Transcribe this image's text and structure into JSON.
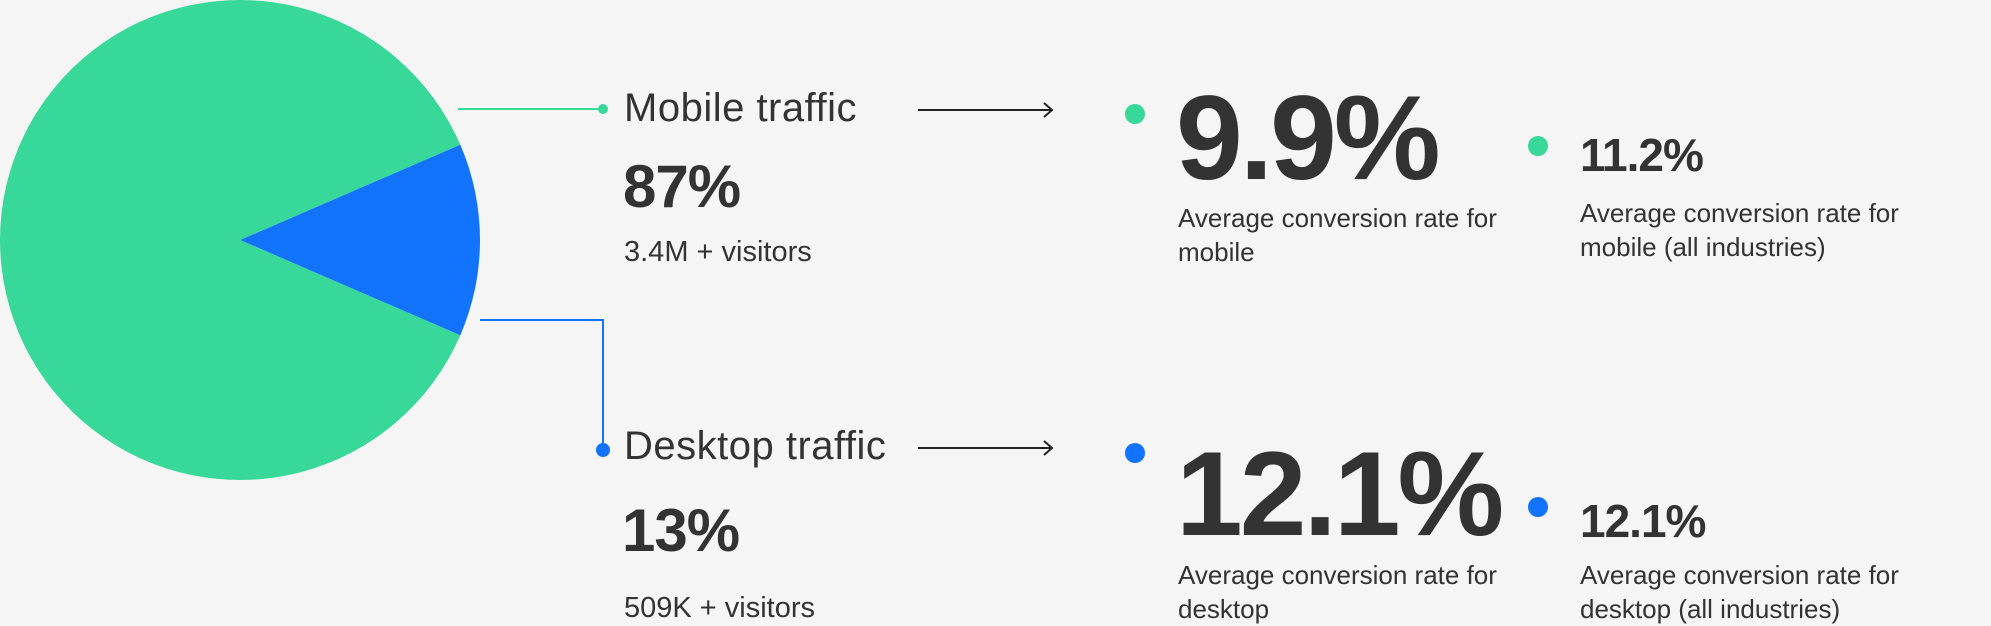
{
  "colors": {
    "mobile": "#37d89a",
    "desktop": "#1273ff",
    "text": "#333333",
    "arrow": "#222222"
  },
  "chart_data": {
    "type": "pie",
    "categories": [
      "Mobile traffic",
      "Desktop traffic"
    ],
    "values": [
      87,
      13
    ]
  },
  "mobile": {
    "label": "Mobile traffic",
    "percent": "87%",
    "visitors": "3.4M + visitors",
    "rate": "9.9%",
    "rate_desc": "Average conversion rate for mobile",
    "benchmark": "11.2%",
    "benchmark_desc": "Average conversion rate for mobile (all industries)"
  },
  "desktop": {
    "label": "Desktop traffic",
    "percent": "13%",
    "visitors": "509K + visitors",
    "rate": "12.1%",
    "rate_desc": "Average conversion rate for desktop",
    "benchmark": "12.1%",
    "benchmark_desc": "Average conversion rate for desktop (all industries)"
  }
}
